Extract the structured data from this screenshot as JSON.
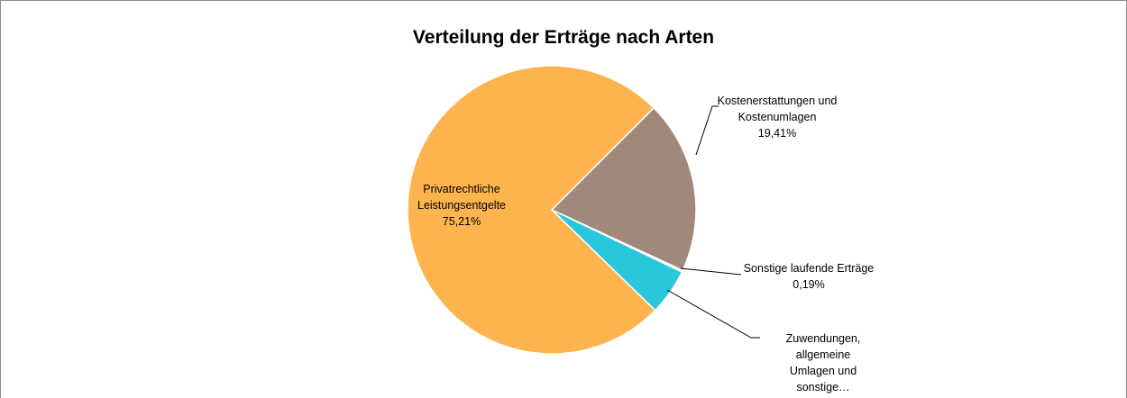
{
  "chart_data": {
    "type": "pie",
    "title": "Verteilung der Erträge nach Arten",
    "categories": [
      "Kostenerstattungen und Kostenumlagen",
      "Sonstige laufende Erträge",
      "Zuwendungen, allgemeine Umlagen und sonstige…",
      "Privatrechtliche Leistungsentgelte"
    ],
    "values": [
      19.41,
      0.19,
      5.19,
      75.21
    ],
    "value_labels": [
      "19,41%",
      "0,19%",
      null,
      "75,21%"
    ],
    "colors": [
      "#a0887c",
      "#d9d9d9",
      "#2ac6d9",
      "#fdb44e"
    ],
    "start_angle": 45
  }
}
